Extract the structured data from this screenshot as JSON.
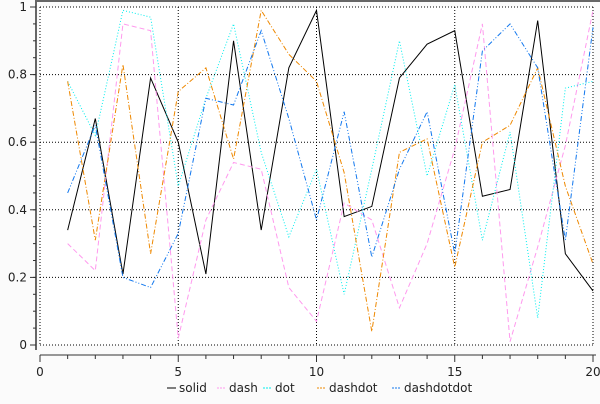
{
  "chart_data": {
    "type": "line",
    "title": "",
    "xlabel": "",
    "ylabel": "",
    "xlim": [
      0,
      20
    ],
    "ylim": [
      0,
      1
    ],
    "grid": true,
    "legend_placement": "bottom",
    "x_ticks": [
      "0",
      "5",
      "10",
      "15",
      "20"
    ],
    "y_ticks": [
      "0",
      "0.2",
      "0.4",
      "0.6",
      "0.8",
      "1"
    ],
    "x": [
      1,
      2,
      3,
      4,
      5,
      6,
      7,
      8,
      9,
      10,
      11,
      12,
      13,
      14,
      15,
      16,
      17,
      18,
      19,
      20
    ],
    "series": [
      {
        "name": "solid",
        "style": "solid",
        "color": "#000000",
        "values": [
          0.34,
          0.67,
          0.21,
          0.79,
          0.6,
          0.21,
          0.9,
          0.34,
          0.82,
          0.99,
          0.38,
          0.41,
          0.79,
          0.89,
          0.93,
          0.44,
          0.46,
          0.96,
          0.27,
          0.16
        ]
      },
      {
        "name": "dash",
        "style": "dash",
        "color": "#ff99ee",
        "values": [
          0.3,
          0.22,
          0.95,
          0.93,
          0.02,
          0.37,
          0.54,
          0.52,
          0.17,
          0.07,
          0.42,
          0.37,
          0.11,
          0.3,
          0.58,
          0.95,
          0.01,
          0.29,
          0.59,
          0.99
        ]
      },
      {
        "name": "dot",
        "style": "dot",
        "color": "#00eeee",
        "values": [
          0.78,
          0.62,
          0.99,
          0.97,
          0.47,
          0.73,
          0.95,
          0.57,
          0.32,
          0.52,
          0.15,
          0.52,
          0.9,
          0.5,
          0.77,
          0.31,
          0.63,
          0.08,
          0.76,
          0.78
        ]
      },
      {
        "name": "dashdot",
        "style": "dashdot",
        "color": "#ee8800",
        "values": [
          0.78,
          0.31,
          0.83,
          0.27,
          0.75,
          0.82,
          0.55,
          0.99,
          0.86,
          0.78,
          0.51,
          0.04,
          0.57,
          0.61,
          0.23,
          0.6,
          0.65,
          0.82,
          0.47,
          0.24
        ]
      },
      {
        "name": "dashdotdot",
        "style": "dashdotdot",
        "color": "#1177ee",
        "values": [
          0.45,
          0.65,
          0.2,
          0.17,
          0.33,
          0.73,
          0.71,
          0.93,
          0.67,
          0.37,
          0.69,
          0.26,
          0.52,
          0.69,
          0.27,
          0.87,
          0.95,
          0.82,
          0.31,
          0.94
        ]
      }
    ]
  }
}
